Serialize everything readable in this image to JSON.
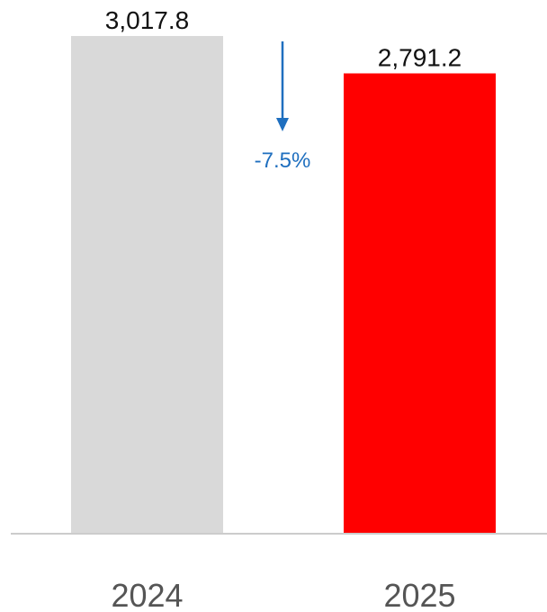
{
  "chart_data": {
    "type": "bar",
    "categories": [
      "2024",
      "2025"
    ],
    "values": [
      3017.8,
      2791.2
    ],
    "value_labels": [
      "3,017.8",
      "2,791.2"
    ],
    "bar_colors": [
      "#d9d9d9",
      "#ff0000"
    ],
    "change": {
      "label": "-7.5%",
      "direction": "down",
      "color": "#1f6fbf"
    },
    "title": "",
    "xlabel": "",
    "ylabel": "",
    "ylim": [
      0,
      3017.8
    ],
    "grid": false,
    "axis_color": "#cccccc"
  }
}
